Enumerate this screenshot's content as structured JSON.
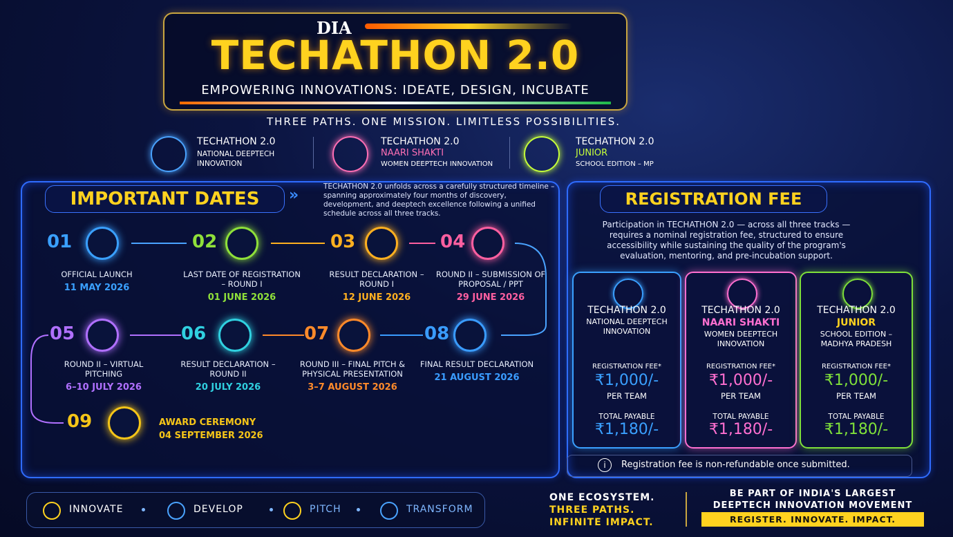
{
  "header": {
    "brand": "DIA",
    "title": "TECHATHON 2.0",
    "tagline": "EMPOWERING INNOVATIONS: IDEATE, DESIGN, INCUBATE"
  },
  "motto": "THREE PATHS. ONE MISSION. LIMITLESS POSSIBILITIES.",
  "tracks": [
    {
      "name": "TECHATHON 2.0",
      "sub": "NATIONAL DEEPTECH INNOVATION"
    },
    {
      "name": "TECHATHON 2.0",
      "highlight": "NAARI SHAKTI",
      "sub": "WOMEN DEEPTECH INNOVATION"
    },
    {
      "name": "TECHATHON 2.0",
      "highlight": "JUNIOR",
      "sub": "SCHOOL EDITION – MP"
    }
  ],
  "dates": {
    "title": "IMPORTANT DATES",
    "intro": "TECHATHON 2.0 unfolds across a carefully structured timeline – spanning approximately four months of discovery, development, and deeptech excellence following a unified schedule across all three tracks.",
    "items": [
      {
        "num": "01",
        "label": "OFFICIAL LAUNCH",
        "date": "11 MAY 2026"
      },
      {
        "num": "02",
        "label": "LAST DATE OF REGISTRATION – ROUND I",
        "date": "01 JUNE 2026"
      },
      {
        "num": "03",
        "label": "RESULT DECLARATION – ROUND I",
        "date": "12 JUNE 2026"
      },
      {
        "num": "04",
        "label": "ROUND II – SUBMISSION OF PROPOSAL / PPT",
        "date": "29 JUNE 2026"
      },
      {
        "num": "05",
        "label": "ROUND II – VIRTUAL PITCHING",
        "date": "6–10 JULY 2026"
      },
      {
        "num": "06",
        "label": "RESULT DECLARATION – ROUND II",
        "date": "20 JULY 2026"
      },
      {
        "num": "07",
        "label": "ROUND III – FINAL PITCH & PHYSICAL PRESENTATION",
        "date": "3–7 AUGUST 2026"
      },
      {
        "num": "08",
        "label": "FINAL RESULT DECLARATION",
        "date": "21 AUGUST 2026"
      },
      {
        "num": "09",
        "label": "AWARD CEREMONY",
        "date": "04 SEPTEMBER 2026"
      }
    ]
  },
  "fee": {
    "title": "REGISTRATION FEE",
    "intro": "Participation in TECHATHON 2.0 — across all three tracks — requires a nominal registration fee, structured to ensure accessibility while sustaining the quality of the program's evaluation, mentoring, and pre-incubation support.",
    "cards": [
      {
        "name": "TECHATHON 2.0",
        "sub": "NATIONAL DEEPTECH INNOVATION",
        "fee_label": "REGISTRATION FEE*",
        "fee": "₹1,000/-",
        "per": "PER TEAM",
        "total_label": "TOTAL PAYABLE",
        "total": "₹1,180/-"
      },
      {
        "name": "TECHATHON 2.0",
        "highlight": "NAARI SHAKTI",
        "sub": "WOMEN DEEPTECH INNOVATION",
        "fee_label": "REGISTRATION FEE*",
        "fee": "₹1,000/-",
        "per": "PER TEAM",
        "total_label": "TOTAL PAYABLE",
        "total": "₹1,180/-"
      },
      {
        "name": "TECHATHON 2.0",
        "highlight": "JUNIOR",
        "sub": "SCHOOL EDITION – MADHYA PRADESH",
        "fee_label": "REGISTRATION FEE*",
        "fee": "₹1,000/-",
        "per": "PER TEAM",
        "total_label": "TOTAL PAYABLE",
        "total": "₹1,180/-"
      }
    ],
    "note": "Registration fee is non-refundable once submitted."
  },
  "footer": {
    "pillars": [
      "INNOVATE",
      "DEVELOP",
      "PITCH",
      "TRANSFORM"
    ],
    "ecosystem": [
      "ONE ECOSYSTEM.",
      "THREE PATHS.",
      "INFINITE IMPACT."
    ],
    "cta_line1": "BE PART OF INDIA'S LARGEST",
    "cta_line2": "DEEPTECH INNOVATION MOVEMENT",
    "cta_button": "REGISTER. INNOVATE. IMPACT."
  }
}
